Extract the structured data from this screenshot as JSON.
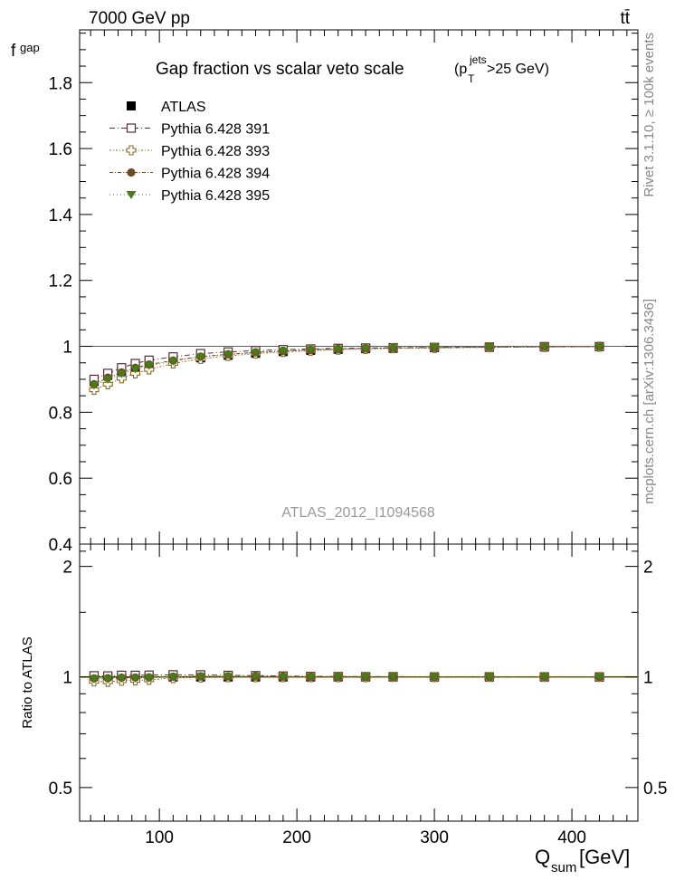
{
  "header": {
    "energy": "7000 GeV pp",
    "process": "tt̄"
  },
  "side_labels": {
    "rivet": "Rivet 3.1.10, ≥ 100k events",
    "mcplots": "mcplots.cern.ch [arXiv:1306.3436]"
  },
  "analysis_id": "ATLAS_2012_I1094568",
  "colors": {
    "atlas": "#000000",
    "p391": "#5a2a3a",
    "p393": "#8a6a2a",
    "p394": "#6b4a2a",
    "p395": "#4a7a1a"
  },
  "chart_data": [
    {
      "type": "scatter",
      "panel": "main",
      "title": "Gap fraction vs scalar veto scale",
      "title_cut": {
        "prefix": "(p",
        "sup": "jets",
        "sub": "T",
        "suffix": ">25 GeV)"
      },
      "ylabel": "f",
      "ylabel_sub": "gap",
      "xlim": [
        42,
        448
      ],
      "ylim": [
        0.4,
        1.96
      ],
      "yticks": [
        0.4,
        0.6,
        0.8,
        1,
        1.2,
        1.4,
        1.6,
        1.8
      ],
      "ytick_labels": [
        "0.4",
        "0.6",
        "0.8",
        "1",
        "1.2",
        "1.4",
        "1.6",
        "1.8"
      ],
      "x": [
        52.5,
        62.5,
        72.5,
        82.5,
        92.5,
        110,
        130,
        150,
        170,
        190,
        210,
        230,
        250,
        270,
        300,
        340,
        380,
        420
      ],
      "legend_position": "top-left",
      "series": [
        {
          "name": "ATLAS",
          "marker": "filled-square",
          "color": "#000000",
          "values": [
            0.893,
            0.912,
            0.925,
            0.938,
            0.947,
            0.955,
            0.965,
            0.973,
            0.979,
            0.984,
            0.988,
            0.991,
            0.993,
            0.994,
            0.996,
            0.997,
            0.998,
            0.999
          ]
        },
        {
          "name": "Pythia 6.428 391",
          "marker": "open-square",
          "color": "#5a2a3a",
          "values": [
            0.9,
            0.918,
            0.935,
            0.948,
            0.958,
            0.968,
            0.978,
            0.983,
            0.987,
            0.99,
            0.992,
            0.994,
            0.995,
            0.996,
            0.997,
            0.998,
            0.999,
            0.999
          ]
        },
        {
          "name": "Pythia 6.428 393",
          "marker": "open-cross",
          "color": "#8a6a2a",
          "values": [
            0.868,
            0.885,
            0.903,
            0.918,
            0.93,
            0.948,
            0.962,
            0.971,
            0.978,
            0.983,
            0.987,
            0.99,
            0.992,
            0.994,
            0.995,
            0.997,
            0.998,
            0.999
          ]
        },
        {
          "name": "Pythia 6.428 394",
          "marker": "filled-circle",
          "color": "#6b4a2a",
          "values": [
            0.885,
            0.905,
            0.921,
            0.935,
            0.945,
            0.957,
            0.969,
            0.976,
            0.982,
            0.986,
            0.989,
            0.992,
            0.994,
            0.995,
            0.996,
            0.998,
            0.999,
            0.999
          ]
        },
        {
          "name": "Pythia 6.428 395",
          "marker": "filled-triangle-down",
          "color": "#4a7a1a",
          "values": [
            0.882,
            0.9,
            0.917,
            0.931,
            0.942,
            0.955,
            0.968,
            0.975,
            0.981,
            0.985,
            0.989,
            0.991,
            0.993,
            0.995,
            0.996,
            0.997,
            0.998,
            0.999
          ]
        }
      ]
    },
    {
      "type": "scatter",
      "panel": "ratio",
      "ylabel": "Ratio to ATLAS",
      "xlabel": "Q",
      "xlabel_sub": "sum",
      "xlabel_unit": " [GeV]",
      "xlim": [
        42,
        448
      ],
      "ylim": [
        0.405,
        2.3
      ],
      "log_y": true,
      "yticks": [
        0.5,
        1,
        2
      ],
      "ytick_labels": [
        "0.5",
        "1",
        "2"
      ],
      "xticks": [
        100,
        200,
        300,
        400
      ],
      "xtick_labels": [
        "100",
        "200",
        "300",
        "400"
      ]
    }
  ]
}
